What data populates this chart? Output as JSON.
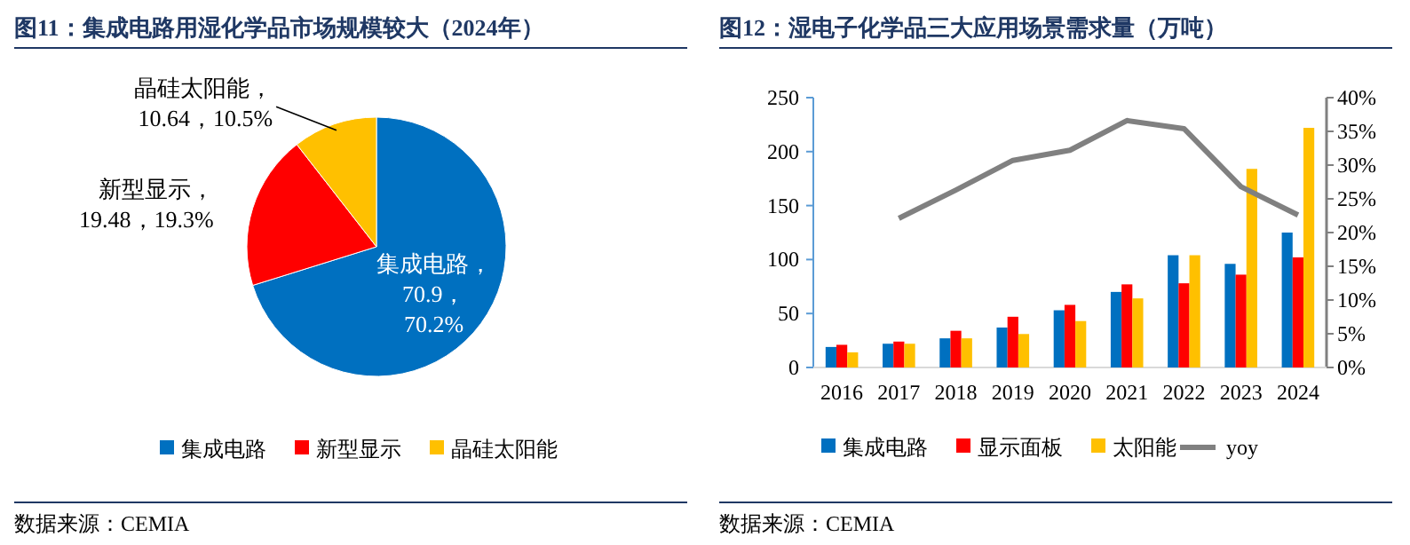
{
  "chart_data": [
    {
      "type": "pie",
      "title": "图11：集成电路用湿化学品市场规模较大（2024年）",
      "categories": [
        "集成电路",
        "新型显示",
        "晶硅太阳能"
      ],
      "values": [
        70.9,
        19.48,
        10.64
      ],
      "colors": [
        "#0070c0",
        "#ff0000",
        "#ffc000"
      ],
      "value_labels": [
        "，\n70.9，\n70.2%",
        "，\n19.48，19.3%",
        "，\n10.64，10.5%"
      ],
      "legend": "bottom",
      "annotations": [
        "数据来源：CEMIA"
      ]
    },
    {
      "type": "bar",
      "title": "图12：湿电子化学品三大应用场景需求量（万吨）",
      "categories": [
        "2016",
        "2017",
        "2018",
        "2019",
        "2020",
        "2021",
        "2022",
        "2023",
        "2024"
      ],
      "series": [
        {
          "name": "集成电路",
          "color": "#0070c0",
          "values": [
            19,
            22,
            27,
            37,
            53,
            70,
            104,
            96,
            125
          ]
        },
        {
          "name": "显示面板",
          "color": "#ff0000",
          "values": [
            21,
            24,
            34,
            47,
            58,
            77,
            78,
            86,
            102
          ]
        },
        {
          "name": "太阳能",
          "color": "#ffc000",
          "values": [
            14,
            22,
            27,
            31,
            43,
            64,
            104,
            184,
            222
          ]
        },
        {
          "name": "yoy",
          "color": "#808080",
          "type": "line",
          "axis": "y2",
          "values": [
            null,
            22.1,
            26.3,
            30.7,
            32.2,
            36.6,
            35.4,
            26.8,
            22.6
          ]
        }
      ],
      "ylim": [
        0,
        250
      ],
      "yticks": [
        0,
        50,
        100,
        150,
        200,
        250
      ],
      "y2lim": [
        0,
        40
      ],
      "y2ticks": [
        {
          "value": 0,
          "label": "0%"
        },
        {
          "value": 5,
          "label": "5%"
        },
        {
          "value": 10,
          "label": "10%"
        },
        {
          "value": 15,
          "label": "15%"
        },
        {
          "value": 20,
          "label": "20%"
        },
        {
          "value": 25,
          "label": "25%"
        },
        {
          "value": 30,
          "label": "30%"
        },
        {
          "value": 35,
          "label": "35%"
        },
        {
          "value": 40,
          "label": "40%"
        }
      ],
      "legend": "bottom",
      "grid": false,
      "annotations": [
        "数据来源：CEMIA"
      ]
    }
  ]
}
